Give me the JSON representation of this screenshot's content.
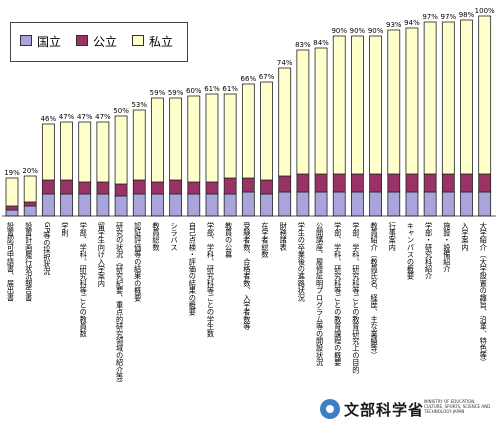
{
  "chart_data": {
    "type": "bar",
    "stacked": true,
    "title": "",
    "xlabel": "",
    "ylabel": "",
    "ylim": [
      0,
      100
    ],
    "legend": {
      "position": "top-left",
      "entries": [
        "国立",
        "公立",
        "私立"
      ]
    },
    "colors": {
      "国立": "#aaa4dd",
      "公立": "#993366",
      "私立": "#ffffcc",
      "outline": "#222222"
    },
    "categories": [
      "設置認可申請書、届出書",
      "設置計画履行状況報告書",
      "GP等の採択状況",
      "学則",
      "学部、学科、研究科等ごとの教員数",
      "留学生向け入学案内",
      "研究の状況（研究紀要、重点的研究領域の紹介等）",
      "認証評価等の結果の概要",
      "教員総数",
      "シラバス",
      "自己点検・評価の結果の概要",
      "学部、学科、研究科等ごとの学生数",
      "教員の公募",
      "受験者数、合格者数、入学者数等",
      "在学者総数",
      "財務諸表",
      "学生の卒業後の進路状況",
      "公開講座、履修証明プログラム等の開設状況",
      "学部、学科、研究科等ごとの教育課程の概要",
      "学部、学科、研究科等ごとの教育研究上の目的",
      "教員紹介（教員氏名、経歴、主な業績等）",
      "行事案内",
      "キャンパスの概要",
      "学部・研究科紹介",
      "施設・設備紹介",
      "入学案内",
      "大学紹介（大学設置の趣旨、沿革、特色等）"
    ],
    "totals": [
      19,
      20,
      46,
      47,
      47,
      47,
      50,
      53,
      59,
      59,
      60,
      61,
      61,
      66,
      67,
      74,
      83,
      84,
      90,
      90,
      90,
      93,
      94,
      97,
      97,
      98,
      100
    ],
    "total_labels": [
      "19%",
      "20%",
      "46%",
      "47%",
      "47%",
      "47%",
      "50%",
      "53%",
      "59%",
      "59%",
      "60%",
      "61%",
      "61%",
      "66%",
      "67%",
      "74%",
      "83%",
      "84%",
      "90%",
      "90%",
      "90%",
      "93%",
      "94%",
      "97%",
      "97%",
      "98%",
      "100%"
    ],
    "series": [
      {
        "name": "国立",
        "values": [
          3,
          5,
          11,
          11,
          11,
          11,
          10,
          11,
          11,
          11,
          11,
          11,
          11,
          12,
          11,
          12,
          12,
          12,
          12,
          12,
          12,
          12,
          12,
          12,
          12,
          12,
          12
        ]
      },
      {
        "name": "公立",
        "values": [
          2,
          2,
          7,
          7,
          6,
          6,
          6,
          7,
          6,
          7,
          6,
          6,
          8,
          7,
          7,
          8,
          9,
          9,
          9,
          9,
          9,
          9,
          9,
          9,
          9,
          9,
          9
        ]
      },
      {
        "name": "私立",
        "values": [
          14,
          13,
          28,
          29,
          30,
          30,
          34,
          35,
          42,
          41,
          43,
          44,
          42,
          47,
          49,
          54,
          62,
          63,
          69,
          69,
          69,
          72,
          73,
          76,
          76,
          77,
          79
        ]
      }
    ]
  },
  "legend_labels": {
    "national": "国立",
    "public": "公立",
    "private": "私立"
  },
  "logo": {
    "name": "文部科学省",
    "english": "MINISTRY OF EDUCATION, CULTURE, SPORTS, SCIENCE AND TECHNOLOGY-JAPAN"
  }
}
